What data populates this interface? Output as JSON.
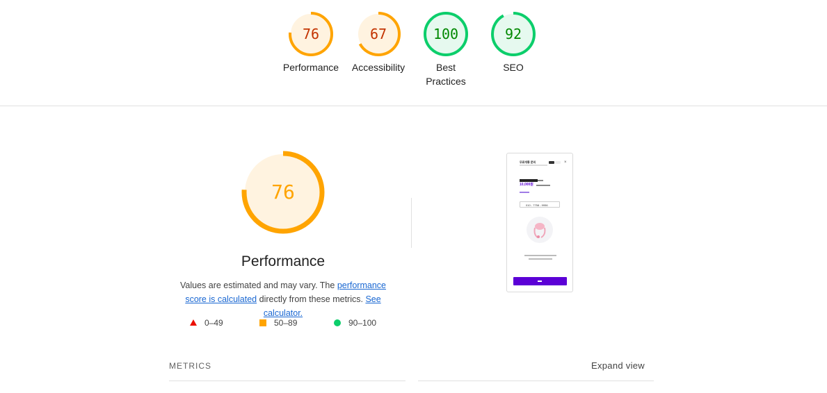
{
  "categories": [
    {
      "score": 76,
      "label": "Performance",
      "status": "average",
      "color": "#ffa400",
      "fill": "#fff3e0",
      "text_color": "#c33300"
    },
    {
      "score": 67,
      "label": "Accessibility",
      "status": "average",
      "color": "#ffa400",
      "fill": "#fff3e0",
      "text_color": "#c33300"
    },
    {
      "score": 100,
      "label": "Best Practices",
      "label_line1": "Best",
      "label_line2": "Practices",
      "status": "pass",
      "color": "#0cce6b",
      "fill": "#e6f9ef",
      "text_color": "#008800"
    },
    {
      "score": 92,
      "label": "SEO",
      "status": "pass",
      "color": "#0cce6b",
      "fill": "#e6f9ef",
      "text_color": "#008800"
    }
  ],
  "performance": {
    "score": 76,
    "title": "Performance",
    "desc_prefix": "Values are estimated and may vary. The ",
    "link_score": "performance score is calculated",
    "desc_middle": " directly from these metrics. ",
    "link_calc": "See calculator.",
    "color": "#ffa400",
    "fill": "#fff3e0"
  },
  "legend": [
    {
      "range": "0–49",
      "icon": "triangle-icon",
      "color": "#eb0f00"
    },
    {
      "range": "50–89",
      "icon": "square-icon",
      "color": "#ffa400"
    },
    {
      "range": "90–100",
      "icon": "circle-icon",
      "color": "#0cce6b"
    }
  ],
  "metrics": {
    "label": "METRICS",
    "expand": "Expand view"
  },
  "screenshot": {
    "header_title": "무료개통 문의",
    "amount": "10,000원",
    "phone": "010 - 7758 - 9956",
    "button_color": "#5b00d6"
  }
}
